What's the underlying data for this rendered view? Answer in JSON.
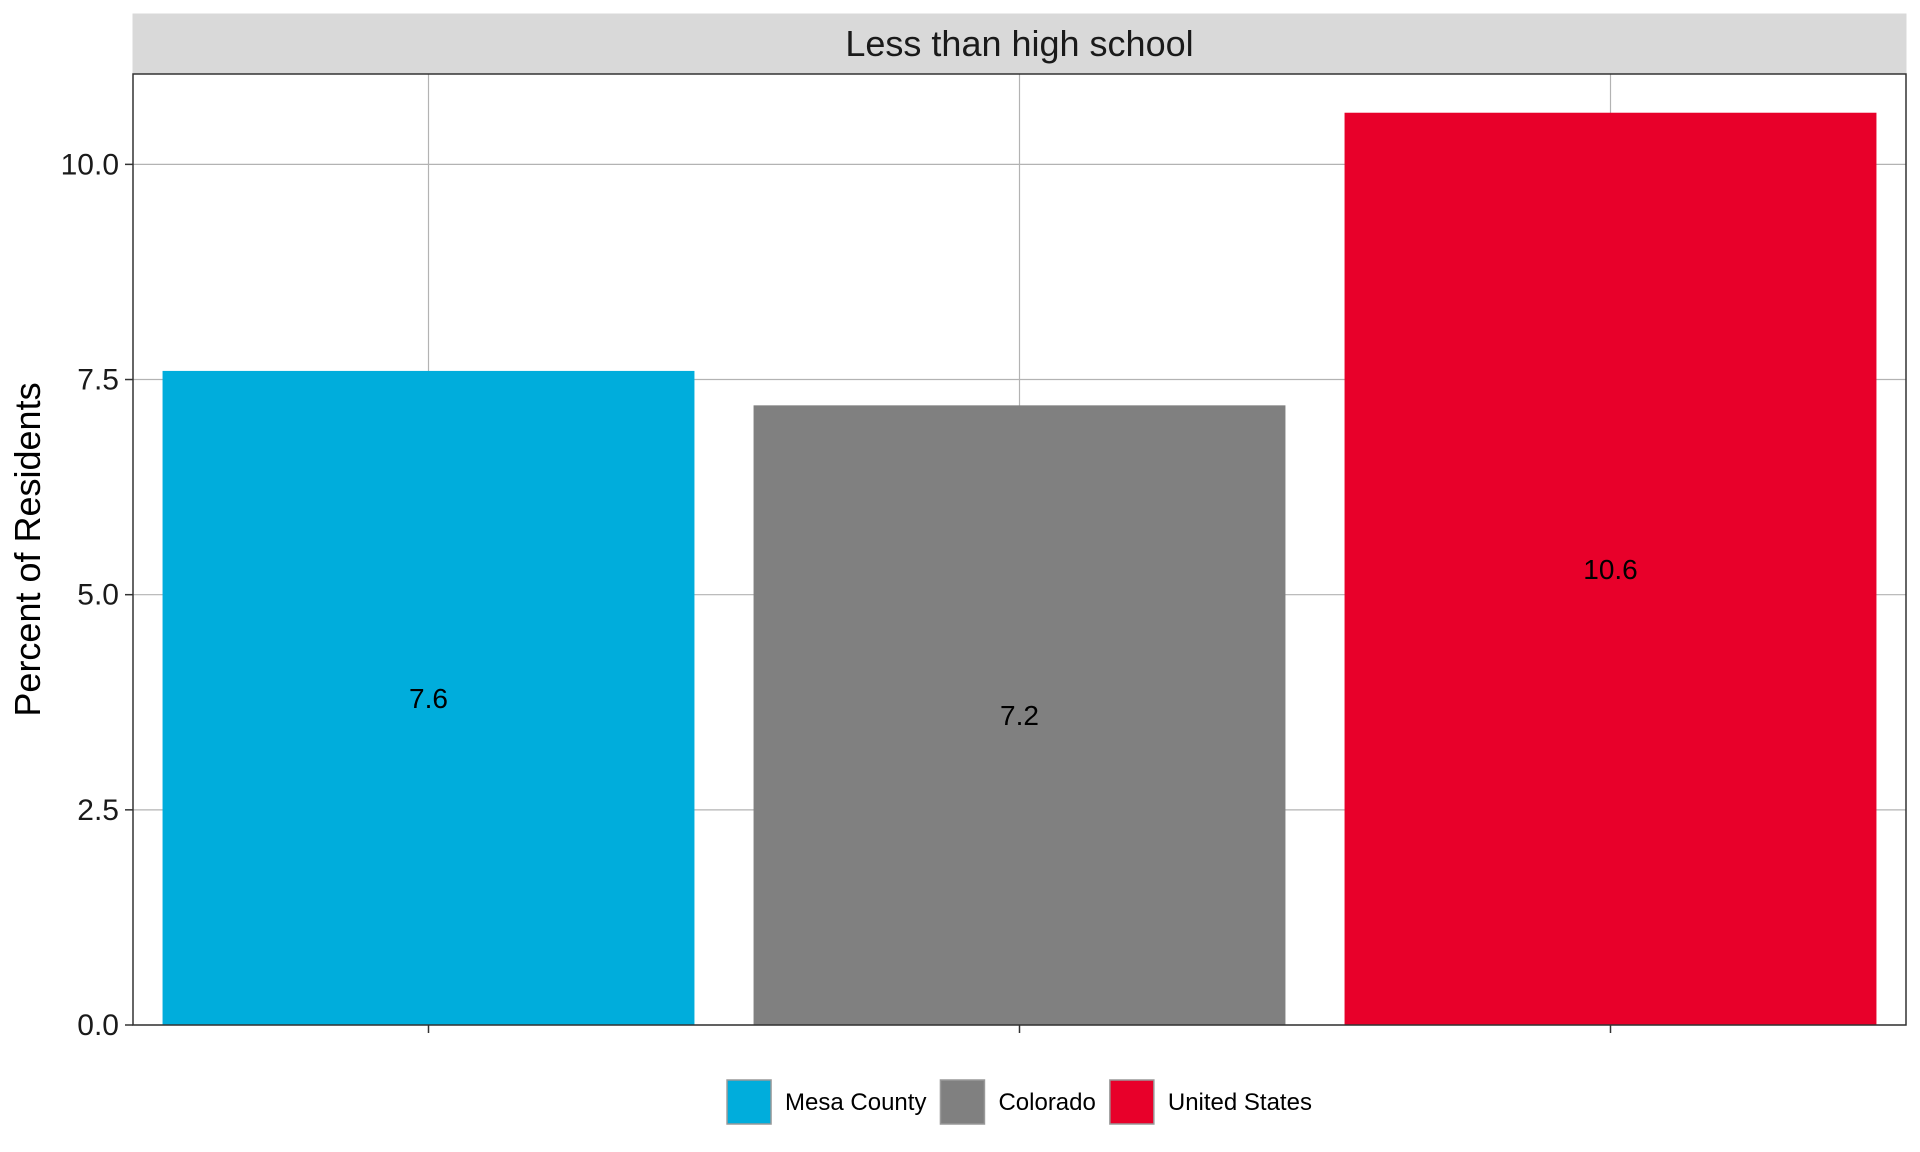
{
  "chart_data": {
    "type": "bar",
    "facet_label": "Less than high school",
    "categories": [
      "Mesa County",
      "Colorado",
      "United States"
    ],
    "values": [
      7.6,
      7.2,
      10.6
    ],
    "data_labels": [
      "7.6",
      "7.2",
      "10.6"
    ],
    "colors": [
      "#00ADDC",
      "#808080",
      "#E8002A"
    ],
    "ylabel": "Percent of Residents",
    "xlabel": "",
    "ylim": [
      0,
      11.05
    ],
    "yticks": [
      0,
      2.5,
      5,
      7.5,
      10
    ],
    "ytick_labels": [
      "0.0",
      "2.5",
      "5.0",
      "7.5",
      "10.0"
    ],
    "grid": true,
    "legend": {
      "position": "bottom",
      "entries": [
        "Mesa County",
        "Colorado",
        "United States"
      ]
    }
  }
}
